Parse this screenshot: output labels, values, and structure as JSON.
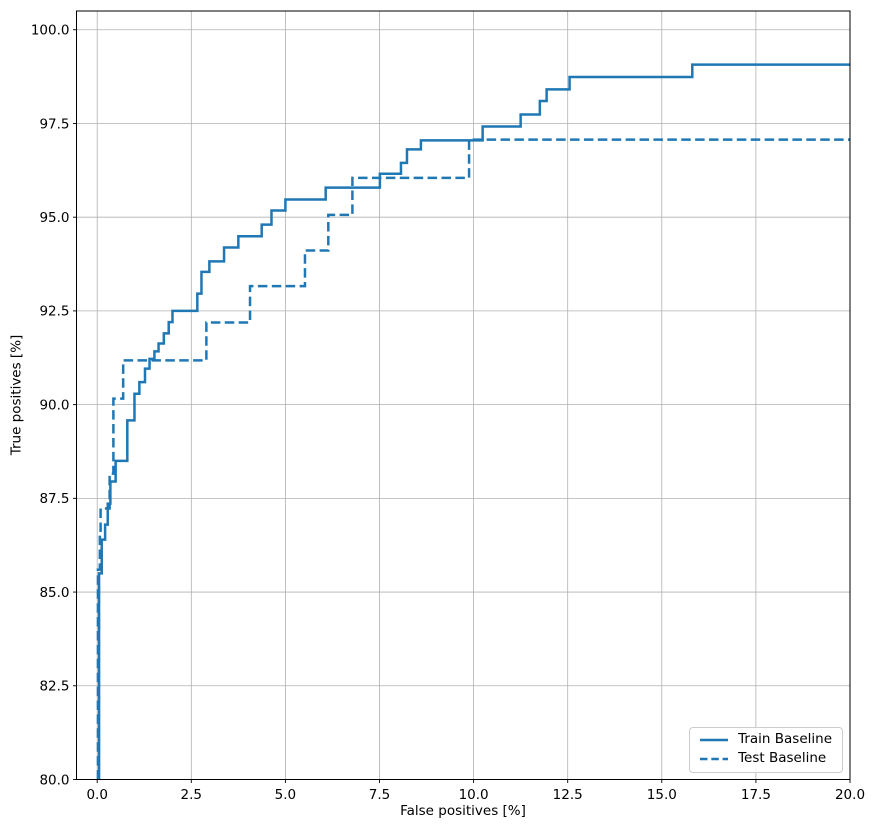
{
  "chart_data": {
    "type": "line",
    "subtype": "roc-step-curves",
    "title": "",
    "xlabel": "False positives [%]",
    "ylabel": "True positives [%]",
    "xlim": [
      -0.55,
      20.0
    ],
    "ylim": [
      80.0,
      100.5
    ],
    "xticks": [
      0.0,
      2.5,
      5.0,
      7.5,
      10.0,
      12.5,
      15.0,
      17.5,
      20.0
    ],
    "xtick_labels": [
      "0.0",
      "2.5",
      "5.0",
      "7.5",
      "10.0",
      "12.5",
      "15.0",
      "17.5",
      "20.0"
    ],
    "yticks": [
      80.0,
      82.5,
      85.0,
      87.5,
      90.0,
      92.5,
      95.0,
      97.5,
      100.0
    ],
    "ytick_labels": [
      "80.0",
      "82.5",
      "85.0",
      "87.5",
      "90.0",
      "92.5",
      "95.0",
      "97.5",
      "100.0"
    ],
    "grid": true,
    "grid_color": "#b0b0b0",
    "axis_color": "#000000",
    "line_color": "#1f77b4",
    "line_width": 2.5,
    "legend": {
      "position": "lower right",
      "entries": [
        "Train Baseline",
        "Test Baseline"
      ]
    },
    "series": [
      {
        "name": "Train Baseline",
        "style": "solid",
        "points": [
          [
            0.05,
            80.0
          ],
          [
            0.05,
            85.5
          ],
          [
            0.12,
            85.5
          ],
          [
            0.12,
            86.4
          ],
          [
            0.21,
            86.4
          ],
          [
            0.21,
            86.8
          ],
          [
            0.28,
            86.8
          ],
          [
            0.28,
            87.36
          ],
          [
            0.35,
            87.36
          ],
          [
            0.35,
            87.95
          ],
          [
            0.49,
            87.95
          ],
          [
            0.49,
            88.5
          ],
          [
            0.8,
            88.5
          ],
          [
            0.8,
            89.58
          ],
          [
            0.99,
            89.58
          ],
          [
            0.99,
            90.29
          ],
          [
            1.12,
            90.29
          ],
          [
            1.12,
            90.6
          ],
          [
            1.27,
            90.6
          ],
          [
            1.27,
            90.96
          ],
          [
            1.39,
            90.96
          ],
          [
            1.39,
            91.22
          ],
          [
            1.52,
            91.22
          ],
          [
            1.52,
            91.42
          ],
          [
            1.63,
            91.42
          ],
          [
            1.63,
            91.63
          ],
          [
            1.77,
            91.63
          ],
          [
            1.77,
            91.9
          ],
          [
            1.9,
            91.9
          ],
          [
            1.9,
            92.2
          ],
          [
            2.0,
            92.2
          ],
          [
            2.0,
            92.5
          ],
          [
            2.66,
            92.5
          ],
          [
            2.66,
            92.96
          ],
          [
            2.77,
            92.96
          ],
          [
            2.77,
            93.54
          ],
          [
            2.98,
            93.54
          ],
          [
            2.98,
            93.82
          ],
          [
            3.37,
            93.82
          ],
          [
            3.37,
            94.19
          ],
          [
            3.75,
            94.19
          ],
          [
            3.75,
            94.49
          ],
          [
            4.37,
            94.49
          ],
          [
            4.37,
            94.8
          ],
          [
            4.63,
            94.8
          ],
          [
            4.63,
            95.18
          ],
          [
            5.0,
            95.18
          ],
          [
            5.0,
            95.47
          ],
          [
            6.07,
            95.47
          ],
          [
            6.07,
            95.79
          ],
          [
            7.51,
            95.79
          ],
          [
            7.51,
            96.16
          ],
          [
            8.07,
            96.16
          ],
          [
            8.07,
            96.45
          ],
          [
            8.23,
            96.45
          ],
          [
            8.23,
            96.81
          ],
          [
            8.6,
            96.81
          ],
          [
            8.6,
            97.05
          ],
          [
            10.24,
            97.05
          ],
          [
            10.24,
            97.42
          ],
          [
            11.25,
            97.42
          ],
          [
            11.25,
            97.74
          ],
          [
            11.76,
            97.74
          ],
          [
            11.76,
            98.1
          ],
          [
            11.94,
            98.1
          ],
          [
            11.94,
            98.41
          ],
          [
            12.55,
            98.41
          ],
          [
            12.55,
            98.74
          ],
          [
            15.81,
            98.74
          ],
          [
            15.81,
            99.07
          ],
          [
            20.0,
            99.07
          ]
        ]
      },
      {
        "name": "Test Baseline",
        "style": "dashed",
        "points": [
          [
            0.02,
            80.0
          ],
          [
            0.02,
            85.6
          ],
          [
            0.07,
            85.6
          ],
          [
            0.07,
            86.6
          ],
          [
            0.09,
            86.6
          ],
          [
            0.09,
            87.23
          ],
          [
            0.33,
            87.23
          ],
          [
            0.33,
            88.16
          ],
          [
            0.43,
            88.16
          ],
          [
            0.43,
            90.16
          ],
          [
            0.69,
            90.16
          ],
          [
            0.69,
            91.18
          ],
          [
            2.9,
            91.18
          ],
          [
            2.9,
            92.19
          ],
          [
            4.06,
            92.19
          ],
          [
            4.06,
            93.16
          ],
          [
            5.52,
            93.16
          ],
          [
            5.52,
            94.11
          ],
          [
            6.14,
            94.11
          ],
          [
            6.14,
            95.06
          ],
          [
            6.78,
            95.06
          ],
          [
            6.78,
            96.05
          ],
          [
            9.88,
            96.05
          ],
          [
            9.88,
            97.07
          ],
          [
            20.0,
            97.07
          ]
        ]
      }
    ]
  }
}
